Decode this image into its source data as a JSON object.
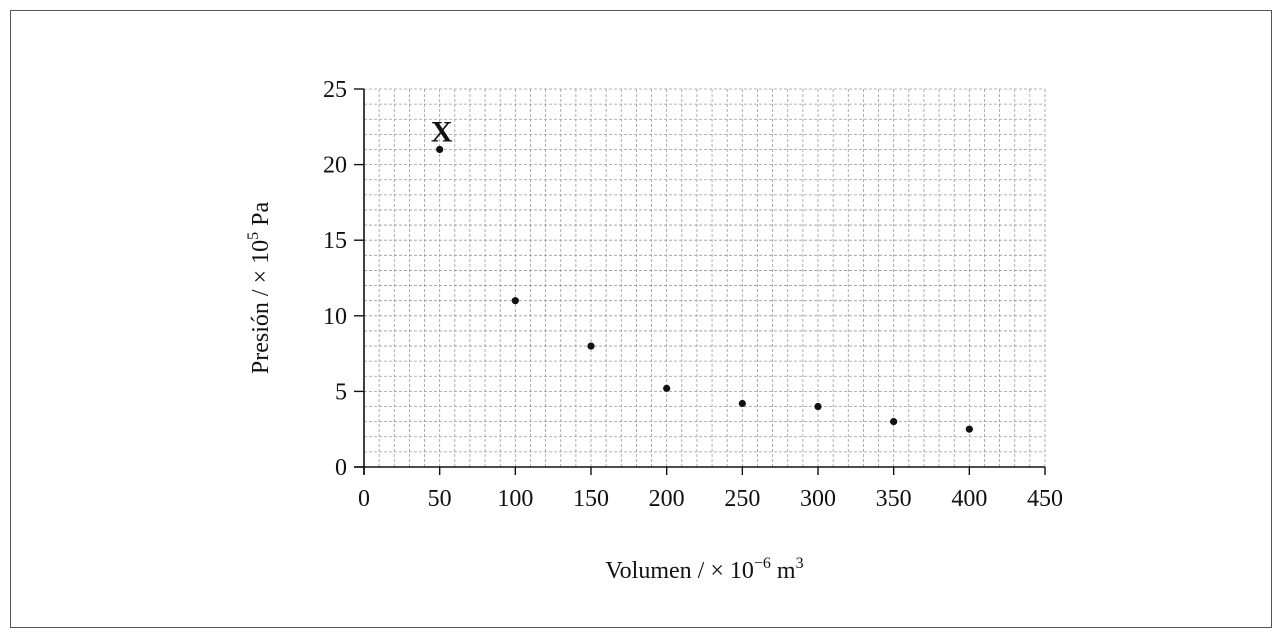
{
  "chart_data": {
    "type": "scatter",
    "title": "",
    "xlabel": {
      "main": "Volumen / × 10",
      "sup": "−6",
      "unit": " m",
      "unit_sup": "3"
    },
    "ylabel": {
      "main": "Presión / × 10",
      "sup": "5",
      "unit": " Pa"
    },
    "xlim": [
      0,
      450
    ],
    "ylim": [
      0,
      25
    ],
    "xticks": [
      0,
      50,
      100,
      150,
      200,
      250,
      300,
      350,
      400,
      450
    ],
    "yticks": [
      0,
      5,
      10,
      15,
      20,
      25
    ],
    "grid": true,
    "minor_grid_per_major_x": 5,
    "minor_grid_per_major_y": 5,
    "points": [
      {
        "x": 50,
        "y": 21
      },
      {
        "x": 100,
        "y": 11
      },
      {
        "x": 150,
        "y": 8
      },
      {
        "x": 200,
        "y": 5.2
      },
      {
        "x": 250,
        "y": 4.2
      },
      {
        "x": 300,
        "y": 4
      },
      {
        "x": 350,
        "y": 3
      },
      {
        "x": 400,
        "y": 2.5
      }
    ],
    "annotations": [
      {
        "text": "X",
        "x": 50,
        "y": 21
      }
    ]
  }
}
